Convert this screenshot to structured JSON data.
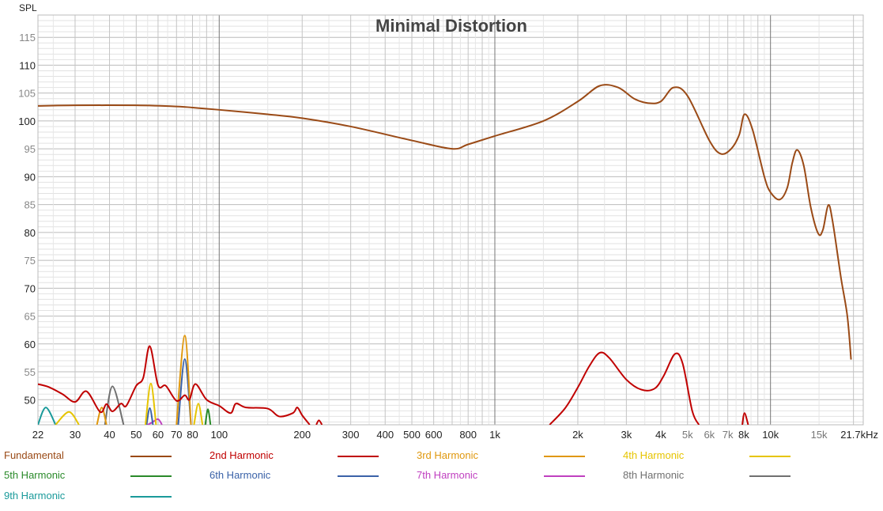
{
  "chart_data": {
    "type": "line",
    "title": "Minimal Distortion",
    "ylabel": "SPL",
    "xlabel": "",
    "x_scale": "log",
    "xlim": [
      22,
      21700
    ],
    "ylim": [
      45.5,
      119
    ],
    "grid": true,
    "legend_placement": "bottom",
    "y_ticks": [
      50,
      55,
      60,
      65,
      70,
      75,
      80,
      85,
      90,
      95,
      100,
      105,
      110,
      115
    ],
    "x_ticks": [
      {
        "v": 22,
        "label": "22"
      },
      {
        "v": 30,
        "label": "30"
      },
      {
        "v": 40,
        "label": "40"
      },
      {
        "v": 50,
        "label": "50"
      },
      {
        "v": 60,
        "label": "60"
      },
      {
        "v": 70,
        "label": "70"
      },
      {
        "v": 80,
        "label": "80"
      },
      {
        "v": 100,
        "label": "100"
      },
      {
        "v": 200,
        "label": "200"
      },
      {
        "v": 300,
        "label": "300"
      },
      {
        "v": 400,
        "label": "400"
      },
      {
        "v": 500,
        "label": "500"
      },
      {
        "v": 600,
        "label": "600"
      },
      {
        "v": 800,
        "label": "800"
      },
      {
        "v": 1000,
        "label": "1k"
      },
      {
        "v": 2000,
        "label": "2k"
      },
      {
        "v": 3000,
        "label": "3k"
      },
      {
        "v": 4000,
        "label": "4k"
      },
      {
        "v": 5000,
        "label": "5k"
      },
      {
        "v": 6000,
        "label": "6k"
      },
      {
        "v": 7000,
        "label": "7k"
      },
      {
        "v": 8000,
        "label": "8k"
      },
      {
        "v": 10000,
        "label": "10k"
      },
      {
        "v": 15000,
        "label": "15k"
      },
      {
        "v": 21700,
        "label": "21.7kHz"
      }
    ],
    "series": [
      {
        "name": "Fundamental",
        "color": "#9a4a16",
        "segments": [
          [
            [
              22,
              102.7
            ],
            [
              30,
              102.8
            ],
            [
              50,
              102.8
            ],
            [
              70,
              102.6
            ],
            [
              80,
              102.4
            ],
            [
              100,
              102
            ],
            [
              150,
              101.2
            ],
            [
              200,
              100.5
            ],
            [
              300,
              99
            ],
            [
              500,
              96.5
            ],
            [
              700,
              95
            ],
            [
              800,
              95.8
            ],
            [
              1000,
              97.3
            ],
            [
              1500,
              100
            ],
            [
              2000,
              103.5
            ],
            [
              2400,
              106.3
            ],
            [
              2800,
              106
            ],
            [
              3200,
              104
            ],
            [
              3600,
              103.2
            ],
            [
              4000,
              103.5
            ],
            [
              4450,
              106
            ],
            [
              5000,
              104.5
            ],
            [
              6000,
              96.5
            ],
            [
              6600,
              94.1
            ],
            [
              7200,
              95
            ],
            [
              7700,
              97.5
            ],
            [
              8050,
              101.2
            ],
            [
              8600,
              98.5
            ],
            [
              9500,
              90
            ],
            [
              10000,
              87.2
            ],
            [
              10800,
              85.9
            ],
            [
              11500,
              88
            ],
            [
              12000,
              92.5
            ],
            [
              12500,
              94.8
            ],
            [
              13200,
              92
            ],
            [
              14000,
              84.5
            ],
            [
              14900,
              79.8
            ],
            [
              15500,
              80.5
            ],
            [
              16200,
              84.9
            ],
            [
              16800,
              82
            ],
            [
              18000,
              72
            ],
            [
              19000,
              65
            ],
            [
              19600,
              57.2
            ]
          ]
        ]
      },
      {
        "name": "2nd Harmonic",
        "color": "#c00000",
        "segments": [
          [
            [
              22,
              52.8
            ],
            [
              24,
              52.3
            ],
            [
              27,
              51
            ],
            [
              30,
              49.6
            ],
            [
              33,
              51.5
            ],
            [
              37,
              47.8
            ],
            [
              39,
              49.2
            ],
            [
              41,
              47.9
            ],
            [
              44,
              49.3
            ],
            [
              46,
              48.9
            ],
            [
              50,
              52.5
            ],
            [
              53,
              53.9
            ],
            [
              56,
              59.6
            ],
            [
              60,
              52.6
            ],
            [
              64,
              52.5
            ],
            [
              70,
              49.8
            ],
            [
              75,
              50.8
            ],
            [
              78,
              50
            ],
            [
              82,
              52.8
            ],
            [
              90,
              50
            ],
            [
              100,
              48.9
            ],
            [
              110,
              47.6
            ],
            [
              115,
              49.3
            ],
            [
              125,
              48.6
            ],
            [
              150,
              48.4
            ],
            [
              165,
              47
            ],
            [
              185,
              47.6
            ],
            [
              192,
              48.6
            ],
            [
              200,
              47.2
            ],
            [
              213,
              45.5
            ]
          ],
          [
            [
              225,
              45.5
            ],
            [
              230,
              46.3
            ],
            [
              236,
              45.5
            ]
          ],
          [
            [
              1580,
              45.5
            ],
            [
              1800,
              48.5
            ],
            [
              2000,
              52.2
            ],
            [
              2200,
              56
            ],
            [
              2400,
              58.4
            ],
            [
              2600,
              57.5
            ],
            [
              3000,
              53.6
            ],
            [
              3400,
              51.8
            ],
            [
              3800,
              52
            ],
            [
              4100,
              54.3
            ],
            [
              4500,
              58.2
            ],
            [
              4800,
              56.5
            ],
            [
              5200,
              48
            ],
            [
              5500,
              45.5
            ]
          ],
          [
            [
              7900,
              45.5
            ],
            [
              8050,
              47.6
            ],
            [
              8300,
              45.5
            ]
          ]
        ]
      },
      {
        "name": "3rd Harmonic",
        "color": "#e0980e",
        "segments": [
          [
            [
              36,
              45.5
            ],
            [
              37.5,
              48.6
            ],
            [
              39,
              45.5
            ]
          ],
          [
            [
              70,
              45.5
            ],
            [
              75,
              61.5
            ],
            [
              79,
              45.5
            ]
          ]
        ]
      },
      {
        "name": "4th Harmonic",
        "color": "#e6c400",
        "segments": [
          [
            [
              25.5,
              45.5
            ],
            [
              28.5,
              47.8
            ],
            [
              31,
              45.5
            ]
          ],
          [
            [
              54,
              45.5
            ],
            [
              56.5,
              52.9
            ],
            [
              59,
              45.5
            ]
          ],
          [
            [
              81,
              45.5
            ],
            [
              84,
              49.3
            ],
            [
              87,
              45.5
            ]
          ]
        ]
      },
      {
        "name": "5th Harmonic",
        "color": "#2a8a2a",
        "segments": [
          [
            [
              89,
              45.5
            ],
            [
              91,
              48.3
            ],
            [
              93,
              45.5
            ]
          ]
        ]
      },
      {
        "name": "6th Harmonic",
        "color": "#3a62a8",
        "segments": [
          [
            [
              54.5,
              45.5
            ],
            [
              56,
              48.5
            ],
            [
              57.5,
              45.5
            ]
          ],
          [
            [
              71,
              45.5
            ],
            [
              75,
              57.3
            ],
            [
              79,
              45.5
            ]
          ]
        ]
      },
      {
        "name": "7th Harmonic",
        "color": "#c040c0",
        "segments": [
          [
            [
              55,
              45.5
            ],
            [
              57,
              45.9
            ],
            [
              60,
              46.5
            ],
            [
              62,
              45.5
            ]
          ]
        ]
      },
      {
        "name": "8th Harmonic",
        "color": "#707070",
        "segments": [
          [
            [
              38.5,
              45.5
            ],
            [
              41,
              52.4
            ],
            [
              45,
              45.5
            ]
          ]
        ]
      },
      {
        "name": "9th Harmonic",
        "color": "#1a9a9a",
        "segments": [
          [
            [
              22,
              45.5
            ],
            [
              23.5,
              48.6
            ],
            [
              25.5,
              45.5
            ]
          ]
        ]
      }
    ]
  }
}
